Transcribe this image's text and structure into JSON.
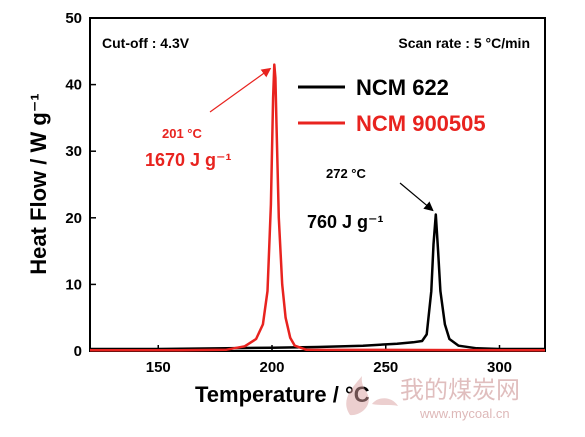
{
  "chart_data": {
    "type": "line",
    "xlabel": "Temperature / °C",
    "ylabel": "Heat Flow / W g⁻¹",
    "xlim": [
      120,
      320
    ],
    "ylim": [
      0,
      50
    ],
    "x_ticks": [
      150,
      200,
      250,
      300
    ],
    "y_ticks": [
      0,
      10,
      20,
      30,
      40,
      50
    ],
    "x_tick_labels": [
      "150",
      "200",
      "250",
      "300"
    ],
    "y_tick_labels": [
      "0",
      "10",
      "20",
      "30",
      "40",
      "50"
    ],
    "notes": {
      "cutoff": "Cut-off : 4.3V",
      "scan_rate": "Scan rate : 5 °C/min"
    },
    "legend": {
      "placement": "top-right",
      "entries": [
        {
          "label": "NCM 622",
          "color": "#000000"
        },
        {
          "label": "NCM 900505",
          "color": "#e8231f"
        }
      ]
    },
    "series": [
      {
        "name": "NCM 622",
        "color": "#000000",
        "x": [
          120,
          150,
          180,
          200,
          220,
          240,
          255,
          262,
          266,
          268,
          270,
          271,
          272,
          273,
          274,
          276,
          278,
          282,
          290,
          300,
          320
        ],
        "y": [
          0.3,
          0.3,
          0.4,
          0.5,
          0.6,
          0.8,
          1.1,
          1.3,
          1.5,
          2.5,
          9,
          16,
          20.5,
          15,
          9,
          4,
          1.8,
          0.8,
          0.4,
          0.3,
          0.3
        ]
      },
      {
        "name": "NCM 900505",
        "color": "#e8231f",
        "x": [
          120,
          160,
          180,
          188,
          193,
          196,
          198,
          199.5,
          200.5,
          201,
          201.5,
          202,
          203,
          204.5,
          206,
          208,
          210,
          215,
          320
        ],
        "y": [
          0.1,
          0.1,
          0.2,
          0.7,
          1.8,
          4,
          9,
          22,
          38,
          43,
          41,
          34,
          20,
          10,
          5,
          2,
          0.8,
          0.2,
          0.1
        ]
      }
    ],
    "annotations": [
      {
        "series": "NCM 900505",
        "temp_label": "201 °C",
        "enthalpy_label": "1670 J g⁻¹",
        "peak": [
          201,
          43
        ],
        "color": "#e8231f"
      },
      {
        "series": "NCM 622",
        "temp_label": "272 °C",
        "enthalpy_label": "760 J g⁻¹",
        "peak": [
          272,
          20.5
        ],
        "color": "#000000"
      }
    ]
  },
  "watermark": {
    "text": "我的煤炭网",
    "url": "www.mycoal.cn",
    "logo_icon": "flame-logo-icon"
  }
}
